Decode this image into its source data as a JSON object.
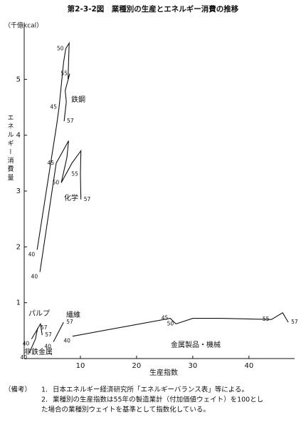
{
  "chart_data": {
    "type": "line",
    "title": "第2-3-2図　業種別の生産とエネルギー消費の推移",
    "y_unit": "（千億kcal）",
    "ylabel": "エネルギー消費量",
    "xlabel": "生産指数",
    "xlim": [
      0,
      48
    ],
    "ylim": [
      0,
      6
    ],
    "xticks": [
      10,
      20,
      30,
      40
    ],
    "yticks": [
      1,
      2,
      3,
      4,
      5
    ],
    "series": [
      {
        "name": "鉄鋼",
        "color": "#111111",
        "x": [
          2.3,
          5.8,
          6.2,
          7.0,
          7.4,
          8.0,
          7.8,
          8.1,
          7.3,
          7.5,
          7.1
        ],
        "values": [
          1.95,
          4.2,
          4.5,
          5.3,
          5.55,
          5.65,
          5.0,
          5.1,
          4.8,
          4.6,
          4.25
        ],
        "point_labels": [
          "40",
          null,
          "45",
          null,
          "50",
          null,
          null,
          "55",
          null,
          null,
          "57"
        ]
      },
      {
        "name": "化学",
        "color": "#111111",
        "x": [
          2.8,
          5.7,
          7.9,
          7.6,
          6.6,
          8.5,
          10.1,
          10.0,
          10.1
        ],
        "values": [
          1.55,
          3.5,
          3.9,
          3.6,
          3.15,
          3.5,
          3.72,
          3.3,
          2.85
        ],
        "point_labels": [
          "40",
          "45",
          null,
          null,
          "50",
          null,
          null,
          "55",
          "57"
        ]
      },
      {
        "name": "パルプ",
        "color": "#111111",
        "x": [
          1.3,
          2.9,
          3.2
        ],
        "values": [
          0.35,
          0.62,
          0.42
        ],
        "point_labels": [
          "40",
          null,
          "57"
        ]
      },
      {
        "name": "非鉄金属",
        "color": "#111111",
        "x": [
          0.9,
          2.0,
          2.4
        ],
        "values": [
          0.1,
          0.35,
          0.55
        ],
        "point_labels": [
          "40",
          null,
          "57"
        ]
      },
      {
        "name": "繊維",
        "color": "#111111",
        "x": [
          5.2,
          7.0
        ],
        "values": [
          0.3,
          0.65
        ],
        "point_labels": [
          "40",
          "57"
        ]
      },
      {
        "name": "金属製品・機械",
        "color": "#111111",
        "x": [
          8.6,
          26.0,
          27.0,
          30.0,
          35.0,
          44.0,
          46.0,
          47.0
        ],
        "values": [
          0.4,
          0.72,
          0.62,
          0.72,
          0.72,
          0.7,
          0.82,
          0.65
        ],
        "point_labels": [
          "40",
          "45",
          "50",
          null,
          null,
          "55",
          null,
          "57"
        ]
      }
    ]
  },
  "notes": {
    "heading": "（備考）",
    "items": [
      {
        "num": "1.",
        "lines": [
          "日本エネルギー経済研究所「エネルギーバランス表」等による。"
        ]
      },
      {
        "num": "2.",
        "lines": [
          "業種別の生産指数は55年の製造業計（付加価値ウェイト）を100とし",
          "た場合の業種別ウェイトを基準として指数化している。"
        ]
      }
    ]
  }
}
